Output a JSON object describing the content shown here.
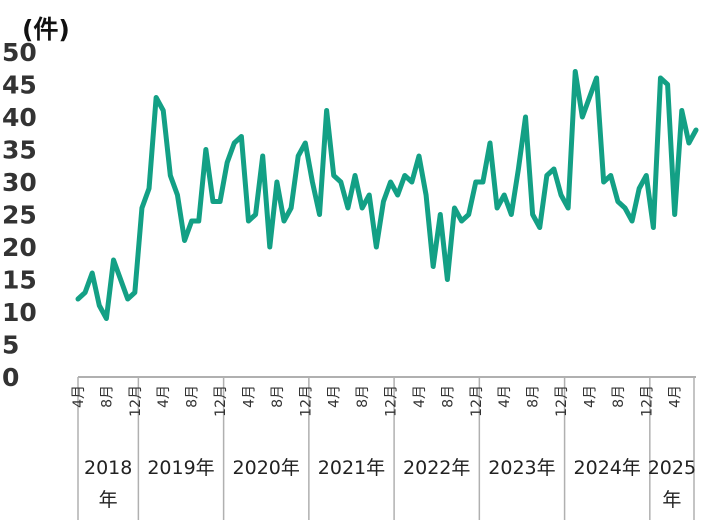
{
  "chart_data": {
    "type": "line",
    "unit_label": "(件)",
    "ylim": [
      0,
      50
    ],
    "yticks": [
      "0",
      "5",
      "10",
      "15",
      "20",
      "25",
      "30",
      "35",
      "40",
      "45",
      "50"
    ],
    "grid": false,
    "line_color": "#13a085",
    "axis_color": "#b0b0b0",
    "start": "2018-04",
    "month_ticks": [
      {
        "year": 2018,
        "month": 4,
        "label": "4月"
      },
      {
        "year": 2018,
        "month": 8,
        "label": "8月"
      },
      {
        "year": 2018,
        "month": 12,
        "label": "12月"
      },
      {
        "year": 2019,
        "month": 4,
        "label": "4月"
      },
      {
        "year": 2019,
        "month": 8,
        "label": "8月"
      },
      {
        "year": 2019,
        "month": 12,
        "label": "12月"
      },
      {
        "year": 2020,
        "month": 4,
        "label": "4月"
      },
      {
        "year": 2020,
        "month": 8,
        "label": "8月"
      },
      {
        "year": 2020,
        "month": 12,
        "label": "12月"
      },
      {
        "year": 2021,
        "month": 4,
        "label": "4月"
      },
      {
        "year": 2021,
        "month": 8,
        "label": "8月"
      },
      {
        "year": 2021,
        "month": 12,
        "label": "12月"
      },
      {
        "year": 2022,
        "month": 4,
        "label": "4月"
      },
      {
        "year": 2022,
        "month": 8,
        "label": "8月"
      },
      {
        "year": 2022,
        "month": 12,
        "label": "12月"
      },
      {
        "year": 2023,
        "month": 4,
        "label": "4月"
      },
      {
        "year": 2023,
        "month": 8,
        "label": "8月"
      },
      {
        "year": 2023,
        "month": 12,
        "label": "12月"
      },
      {
        "year": 2024,
        "month": 4,
        "label": "4月"
      },
      {
        "year": 2024,
        "month": 8,
        "label": "8月"
      },
      {
        "year": 2024,
        "month": 12,
        "label": "12月"
      },
      {
        "year": 2025,
        "month": 4,
        "label": "4月"
      }
    ],
    "year_groups": [
      {
        "label": "2018年",
        "year": 2018
      },
      {
        "label": "2019年",
        "year": 2019
      },
      {
        "label": "2020年",
        "year": 2020
      },
      {
        "label": "2021年",
        "year": 2021
      },
      {
        "label": "2022年",
        "year": 2022
      },
      {
        "label": "2023年",
        "year": 2023
      },
      {
        "label": "2024年",
        "year": 2024
      },
      {
        "label": "2025年",
        "year": 2025
      }
    ],
    "values": [
      12,
      13,
      16,
      11,
      9,
      18,
      15,
      12,
      13,
      26,
      29,
      43,
      41,
      31,
      28,
      21,
      24,
      24,
      35,
      27,
      27,
      33,
      36,
      37,
      24,
      25,
      34,
      20,
      30,
      24,
      26,
      34,
      36,
      30,
      25,
      41,
      31,
      30,
      26,
      31,
      26,
      28,
      20,
      27,
      30,
      28,
      31,
      30,
      34,
      28,
      17,
      25,
      15,
      26,
      24,
      25,
      30,
      30,
      36,
      26,
      28,
      25,
      32,
      40,
      25,
      23,
      31,
      32,
      28,
      26,
      47,
      40,
      43,
      46,
      30,
      31,
      27,
      26,
      24,
      29,
      31,
      23,
      46,
      45,
      25,
      41,
      36,
      38
    ]
  }
}
